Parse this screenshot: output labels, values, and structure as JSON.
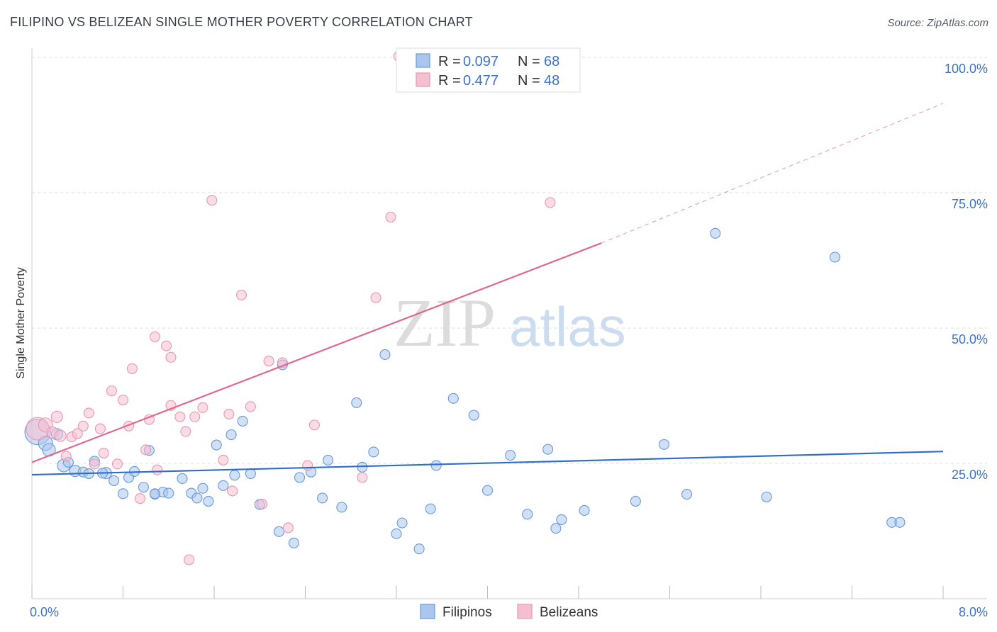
{
  "title": "FILIPINO VS BELIZEAN SINGLE MOTHER POVERTY CORRELATION CHART",
  "source": "Source: ZipAtlas.com",
  "watermark": {
    "zip": "ZIP",
    "atlas": "atlas"
  },
  "colors": {
    "filipino_fill": "#a9c6ee",
    "filipino_stroke": "#6a9ad8",
    "filipino_line": "#2f6fcb",
    "belizean_fill": "#f6bfd0",
    "belizean_stroke": "#e898b2",
    "belizean_line": "#e0698f",
    "tick_text": "#3c73c8",
    "grid": "#dddddd"
  },
  "legend": {
    "rows": [
      {
        "r_label": "R =",
        "r_value": "0.097",
        "n_label": "N =",
        "n_value": "68"
      },
      {
        "r_label": "R =",
        "r_value": "0.477",
        "n_label": "N =",
        "n_value": "48"
      }
    ]
  },
  "chart_data": {
    "type": "scatter",
    "xlabel": "",
    "ylabel": "Single Mother Poverty",
    "xlim": [
      0,
      8
    ],
    "ylim": [
      0,
      100
    ],
    "x_tick_labels": [
      "0.0%",
      "8.0%"
    ],
    "y_ticks": [
      25,
      50,
      75,
      100
    ],
    "y_tick_labels": [
      "25.0%",
      "50.0%",
      "75.0%",
      "100.0%"
    ],
    "grid": true,
    "series": [
      {
        "name": "Filipinos",
        "r": 0.097,
        "n": 68,
        "trend": {
          "x0": 0,
          "y0": 22.9,
          "x1": 8,
          "y1": 27.2,
          "dash_to": 8
        },
        "points": [
          [
            0.05,
            30.8,
            18
          ],
          [
            0.12,
            28.7,
            10
          ],
          [
            0.15,
            27.5,
            9
          ],
          [
            0.22,
            30.4,
            8
          ],
          [
            0.28,
            24.6,
            9
          ],
          [
            0.32,
            25.2,
            7
          ],
          [
            0.38,
            23.6,
            8
          ],
          [
            0.45,
            23.4,
            7
          ],
          [
            0.5,
            23.1,
            7
          ],
          [
            0.55,
            25.4,
            7
          ],
          [
            0.65,
            23.2,
            8
          ],
          [
            0.72,
            21.8,
            7
          ],
          [
            0.8,
            19.4,
            7
          ],
          [
            0.85,
            22.4,
            7
          ],
          [
            0.9,
            23.5,
            7
          ],
          [
            0.98,
            20.6,
            7
          ],
          [
            1.03,
            27.4,
            7
          ],
          [
            1.08,
            19.3,
            7
          ],
          [
            1.15,
            19.7,
            7
          ],
          [
            1.2,
            19.5,
            7
          ],
          [
            1.32,
            22.2,
            7
          ],
          [
            1.4,
            19.5,
            7
          ],
          [
            1.45,
            18.6,
            7
          ],
          [
            1.5,
            20.4,
            7
          ],
          [
            1.55,
            18.0,
            7
          ],
          [
            1.62,
            28.4,
            7
          ],
          [
            1.68,
            20.9,
            7
          ],
          [
            1.75,
            30.3,
            7
          ],
          [
            1.78,
            22.8,
            7
          ],
          [
            1.85,
            32.8,
            7
          ],
          [
            1.92,
            23.1,
            7
          ],
          [
            2.0,
            17.4,
            7
          ],
          [
            2.2,
            43.2,
            7
          ],
          [
            2.3,
            10.3,
            7
          ],
          [
            2.35,
            22.4,
            7
          ],
          [
            2.45,
            23.4,
            7
          ],
          [
            2.55,
            18.6,
            7
          ],
          [
            2.6,
            25.6,
            7
          ],
          [
            2.72,
            16.9,
            7
          ],
          [
            2.85,
            36.2,
            7
          ],
          [
            2.9,
            24.3,
            7
          ],
          [
            3.0,
            27.1,
            7
          ],
          [
            3.1,
            45.1,
            7
          ],
          [
            3.2,
            12.0,
            7
          ],
          [
            3.25,
            14.0,
            7
          ],
          [
            3.4,
            9.2,
            7
          ],
          [
            3.5,
            16.6,
            7
          ],
          [
            3.55,
            24.6,
            7
          ],
          [
            3.7,
            37.0,
            7
          ],
          [
            3.88,
            33.9,
            7
          ],
          [
            4.0,
            20.0,
            7
          ],
          [
            4.2,
            26.5,
            7
          ],
          [
            4.35,
            15.6,
            7
          ],
          [
            4.53,
            27.6,
            7
          ],
          [
            4.6,
            13.0,
            7
          ],
          [
            4.65,
            14.6,
            7
          ],
          [
            4.85,
            16.3,
            7
          ],
          [
            5.3,
            18.0,
            7
          ],
          [
            5.55,
            28.5,
            7
          ],
          [
            5.75,
            19.3,
            7
          ],
          [
            6.0,
            67.5,
            7
          ],
          [
            6.45,
            18.8,
            7
          ],
          [
            7.05,
            63.1,
            7
          ],
          [
            7.55,
            14.1,
            7
          ],
          [
            7.62,
            14.1,
            7
          ],
          [
            2.17,
            12.4,
            7
          ],
          [
            1.08,
            19.4,
            7
          ],
          [
            0.62,
            23.2,
            7
          ]
        ]
      },
      {
        "name": "Belizeans",
        "r": 0.477,
        "n": 48,
        "trend": {
          "x0": 0,
          "y0": 25.2,
          "x1": 5.0,
          "y1": 65.7,
          "dash_to": 8,
          "dash_y": 91.5
        },
        "points": [
          [
            0.05,
            31.4,
            16
          ],
          [
            0.12,
            32.1,
            10
          ],
          [
            0.18,
            30.7,
            8
          ],
          [
            0.22,
            33.6,
            8
          ],
          [
            0.25,
            30.1,
            8
          ],
          [
            0.3,
            26.3,
            7
          ],
          [
            0.35,
            29.9,
            7
          ],
          [
            0.4,
            30.5,
            7
          ],
          [
            0.45,
            31.9,
            7
          ],
          [
            0.5,
            34.3,
            7
          ],
          [
            0.55,
            24.9,
            7
          ],
          [
            0.6,
            31.4,
            7
          ],
          [
            0.63,
            26.9,
            7
          ],
          [
            0.7,
            38.4,
            7
          ],
          [
            0.75,
            24.9,
            7
          ],
          [
            0.8,
            36.7,
            7
          ],
          [
            0.85,
            31.9,
            7
          ],
          [
            0.88,
            42.5,
            7
          ],
          [
            0.95,
            18.5,
            7
          ],
          [
            1.0,
            27.5,
            7
          ],
          [
            1.03,
            33.1,
            7
          ],
          [
            1.08,
            48.4,
            7
          ],
          [
            1.1,
            23.8,
            7
          ],
          [
            1.18,
            46.7,
            7
          ],
          [
            1.22,
            44.6,
            7
          ],
          [
            1.22,
            35.7,
            7
          ],
          [
            1.3,
            33.6,
            7
          ],
          [
            1.35,
            30.9,
            7
          ],
          [
            1.38,
            7.2,
            7
          ],
          [
            1.43,
            33.6,
            7
          ],
          [
            1.5,
            35.3,
            7
          ],
          [
            1.58,
            73.6,
            7
          ],
          [
            1.68,
            25.6,
            7
          ],
          [
            1.73,
            34.1,
            7
          ],
          [
            1.76,
            19.9,
            7
          ],
          [
            1.84,
            56.1,
            7
          ],
          [
            1.92,
            35.5,
            7
          ],
          [
            2.02,
            17.5,
            7
          ],
          [
            2.2,
            43.6,
            7
          ],
          [
            2.25,
            13.1,
            7
          ],
          [
            2.42,
            24.6,
            7
          ],
          [
            2.48,
            32.1,
            7
          ],
          [
            2.9,
            22.4,
            7
          ],
          [
            3.02,
            55.6,
            7
          ],
          [
            3.15,
            70.5,
            7
          ],
          [
            3.22,
            100.2,
            7
          ],
          [
            4.55,
            73.2,
            7
          ],
          [
            2.08,
            43.9,
            7
          ]
        ]
      }
    ]
  }
}
